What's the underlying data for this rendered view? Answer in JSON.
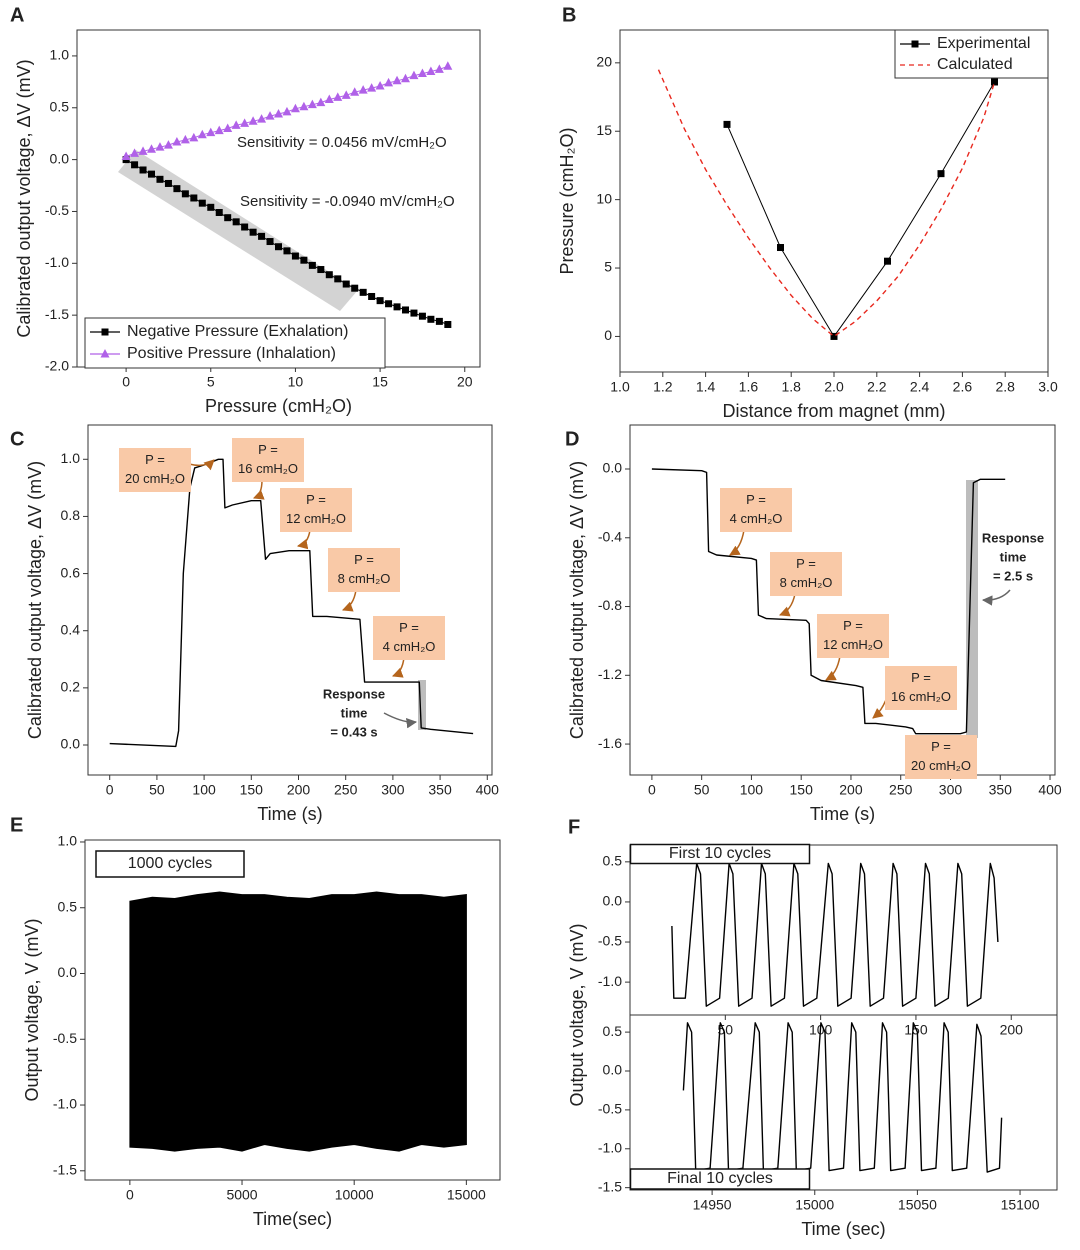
{
  "chart_data": [
    {
      "panel": "A",
      "type": "line",
      "xlabel": "Pressure (cmH₂O)",
      "ylabel": "Calibrated output voltage, ΔV (mV)",
      "xlim": [
        -2.9,
        20.9
      ],
      "xticks": [
        0,
        5,
        10,
        15,
        20
      ],
      "ylim": [
        -2.0,
        1.25
      ],
      "yticks": [
        {
          "value": -2,
          "label": "-2.0"
        },
        -1.5,
        {
          "value": -1,
          "label": "-1.0"
        },
        -0.5,
        {
          "value": 0,
          "label": "0.0"
        },
        0.5,
        {
          "value": 1,
          "label": "1.0"
        }
      ],
      "x": [
        0,
        0.5,
        1,
        1.5,
        2,
        2.5,
        3,
        3.5,
        4,
        4.5,
        5,
        5.5,
        6,
        6.5,
        7,
        7.5,
        8,
        8.5,
        9,
        9.5,
        10,
        10.5,
        11,
        11.5,
        12,
        12.5,
        13,
        13.5,
        14,
        14.5,
        15,
        15.5,
        16,
        16.5,
        17,
        17.5,
        18,
        18.5,
        19
      ],
      "series": [
        {
          "name": "Negative Pressure (Exhalation)",
          "color": "#000000",
          "marker": "square",
          "values": [
            0,
            -0.05,
            -0.1,
            -0.14,
            -0.19,
            -0.23,
            -0.28,
            -0.33,
            -0.37,
            -0.42,
            -0.46,
            -0.51,
            -0.56,
            -0.6,
            -0.65,
            -0.7,
            -0.74,
            -0.79,
            -0.84,
            -0.88,
            -0.93,
            -0.97,
            -1.02,
            -1.06,
            -1.11,
            -1.15,
            -1.2,
            -1.24,
            -1.28,
            -1.32,
            -1.36,
            -1.39,
            -1.42,
            -1.45,
            -1.48,
            -1.51,
            -1.54,
            -1.56,
            -1.59
          ]
        },
        {
          "name": "Positive Pressure (Inhalation)",
          "color": "#b061e8",
          "marker": "triangle",
          "values": [
            0.03,
            0.06,
            0.08,
            0.1,
            0.12,
            0.14,
            0.17,
            0.19,
            0.21,
            0.24,
            0.26,
            0.28,
            0.3,
            0.33,
            0.35,
            0.37,
            0.39,
            0.42,
            0.44,
            0.46,
            0.49,
            0.51,
            0.53,
            0.55,
            0.58,
            0.6,
            0.62,
            0.65,
            0.67,
            0.69,
            0.71,
            0.74,
            0.76,
            0.78,
            0.81,
            0.83,
            0.85,
            0.87,
            0.9
          ]
        }
      ],
      "legend": "lower left",
      "annotations": [
        "Sensitivity = 0.0456 mV/cmH₂O",
        "Sensitivity = -0.0940 mV/cmH₂O"
      ]
    },
    {
      "panel": "B",
      "type": "line",
      "xlabel": "Distance from magnet (mm)",
      "ylabel": "Pressure (cmH₂O)",
      "xlim": [
        1,
        3
      ],
      "xticks": [
        {
          "value": 1,
          "label": "1.0"
        },
        1.2,
        1.4,
        1.6,
        1.8,
        {
          "value": 2,
          "label": "2.0"
        },
        2.2,
        2.4,
        2.6,
        2.8,
        {
          "value": 3,
          "label": "3.0"
        }
      ],
      "ylim": [
        -2.6,
        22.4
      ],
      "yticks": [
        0,
        5,
        10,
        15,
        20
      ],
      "legend": "upper right",
      "series": [
        {
          "name": "Experimental",
          "color": "#000000",
          "marker": "square",
          "x": [
            1.5,
            1.75,
            2,
            2.25,
            2.5,
            2.75
          ],
          "values": [
            15.5,
            6.5,
            0,
            5.5,
            11.9,
            18.6
          ]
        },
        {
          "name": "Calculated",
          "color": "#e8281e",
          "dash": true,
          "x": [
            1.18,
            1.3,
            1.4,
            1.5,
            1.6,
            1.7,
            1.8,
            1.9,
            2.0,
            2.1,
            2.2,
            2.3,
            2.4,
            2.5,
            2.6,
            2.7,
            2.75
          ],
          "values": [
            19.5,
            15.2,
            12.2,
            9.6,
            7.2,
            5.0,
            3.0,
            1.3,
            0,
            1.1,
            2.6,
            4.4,
            6.7,
            9.3,
            12.3,
            16.0,
            18.6
          ]
        }
      ]
    },
    {
      "panel": "C",
      "type": "line",
      "xlabel": "Time (s)",
      "ylabel": "Calibrated output voltage, ΔV (mV)",
      "xlim": [
        -23,
        405
      ],
      "xticks": [
        0,
        50,
        100,
        150,
        200,
        250,
        300,
        350,
        400
      ],
      "ylim": [
        -0.105,
        1.12
      ],
      "yticks": [
        {
          "value": 0,
          "label": "0.0"
        },
        0.2,
        0.4,
        0.6,
        0.8,
        {
          "value": 1,
          "label": "1.0"
        }
      ],
      "series": [
        {
          "color": "#000000",
          "x": [
            0,
            70,
            73,
            78,
            85,
            90,
            100,
            115,
            120,
            122,
            130,
            150,
            160,
            165,
            170,
            190,
            212,
            215,
            230,
            265,
            270,
            285,
            320,
            328,
            330,
            340,
            385
          ],
          "values": [
            0.005,
            -0.005,
            0.05,
            0.6,
            0.9,
            0.97,
            0.98,
            1.0,
            1.0,
            0.83,
            0.84,
            0.855,
            0.855,
            0.65,
            0.67,
            0.68,
            0.68,
            0.45,
            0.45,
            0.44,
            0.22,
            0.22,
            0.22,
            0.22,
            0.06,
            0.055,
            0.04
          ]
        }
      ],
      "annotations": [
        [
          "P =",
          "20 cmH₂O"
        ],
        [
          "P =",
          "16 cmH₂O"
        ],
        [
          "P =",
          "12 cmH₂O"
        ],
        [
          "P =",
          "8 cmH₂O"
        ],
        [
          "P =",
          "4 cmH₂O"
        ],
        [
          "Response",
          "time",
          "= 0.43 s"
        ]
      ]
    },
    {
      "panel": "D",
      "type": "line",
      "xlabel": "Time (s)",
      "ylabel": "Calibrated output voltage, ΔV (mV)",
      "xlim": [
        -22,
        405
      ],
      "xticks": [
        0,
        50,
        100,
        150,
        200,
        250,
        300,
        350,
        400
      ],
      "ylim": [
        -1.78,
        0.256
      ],
      "yticks": [
        -1.6,
        -1.2,
        -0.8,
        -0.4,
        {
          "value": 0,
          "label": "0.0"
        }
      ],
      "series": [
        {
          "color": "#000000",
          "x": [
            0,
            50,
            55,
            57,
            65,
            100,
            105,
            107,
            115,
            155,
            158,
            160,
            170,
            205,
            212,
            214,
            225,
            255,
            262,
            265,
            310,
            316,
            323,
            330,
            355
          ],
          "values": [
            0,
            -0.01,
            -0.02,
            -0.48,
            -0.5,
            -0.52,
            -0.53,
            -0.85,
            -0.87,
            -0.88,
            -0.9,
            -1.2,
            -1.23,
            -1.26,
            -1.27,
            -1.48,
            -1.48,
            -1.5,
            -1.51,
            -1.54,
            -1.54,
            -1.53,
            -0.08,
            -0.06,
            -0.06
          ]
        }
      ],
      "annotations": [
        [
          "P =",
          "4 cmH₂O"
        ],
        [
          "P =",
          "8 cmH₂O"
        ],
        [
          "P =",
          "12 cmH₂O"
        ],
        [
          "P =",
          "16 cmH₂O"
        ],
        [
          "P =",
          "20 cmH₂O"
        ],
        [
          "Response",
          "time",
          "= 2.5 s"
        ]
      ]
    },
    {
      "panel": "E",
      "type": "band",
      "xlabel": "Time(sec)",
      "ylabel": "Output voltage, V (mV)",
      "xlim": [
        -2000,
        16500
      ],
      "xticks": [
        0,
        5000,
        10000,
        15000
      ],
      "ylim": [
        -1.57,
        1.015
      ],
      "yticks": [
        -1.5,
        {
          "value": -1,
          "label": "-1.0"
        },
        -0.5,
        {
          "value": 0,
          "label": "0.0"
        },
        0.5,
        {
          "value": 1,
          "label": "1.0"
        }
      ],
      "color": "#000000",
      "x": [
        0,
        1000,
        2000,
        3000,
        4000,
        5000,
        6000,
        7000,
        8000,
        9000,
        10000,
        11000,
        12000,
        13000,
        14000,
        15000
      ],
      "upper": [
        0.55,
        0.58,
        0.57,
        0.6,
        0.62,
        0.6,
        0.6,
        0.58,
        0.57,
        0.6,
        0.6,
        0.62,
        0.6,
        0.6,
        0.58,
        0.6
      ],
      "lower": [
        -1.32,
        -1.33,
        -1.35,
        -1.33,
        -1.32,
        -1.35,
        -1.3,
        -1.33,
        -1.35,
        -1.32,
        -1.3,
        -1.33,
        -1.35,
        -1.3,
        -1.32,
        -1.3
      ],
      "annotations": [
        "1000 cycles"
      ]
    },
    {
      "panel": "F",
      "type": "line",
      "ylabel": "Output voltage, V (mV)",
      "xlim": [
        0,
        224
      ],
      "xticks": [
        50,
        100,
        150,
        200
      ],
      "ylim": [
        -1.41,
        0.71
      ],
      "yticks": [
        {
          "value": -1,
          "label": "-1.0"
        },
        -0.5,
        {
          "value": 0,
          "label": "0.0"
        },
        0.5
      ],
      "series": [
        {
          "color": "#000000",
          "x": [
            22,
            23,
            29,
            35,
            37,
            40,
            47,
            52,
            54,
            57,
            64,
            69,
            71,
            74,
            81,
            86,
            88,
            91,
            98,
            104,
            106,
            109,
            116,
            121,
            123,
            126,
            133,
            138,
            140,
            143,
            150,
            155,
            157,
            160,
            167,
            172,
            174,
            177,
            184,
            189,
            191,
            193
          ],
          "values": [
            -0.3,
            -1.2,
            -1.2,
            0.48,
            0.35,
            -1.3,
            -1.2,
            0.48,
            0.35,
            -1.3,
            -1.2,
            0.48,
            0.35,
            -1.3,
            -1.2,
            0.48,
            0.35,
            -1.3,
            -1.2,
            0.48,
            0.35,
            -1.3,
            -1.2,
            0.48,
            0.35,
            -1.3,
            -1.2,
            0.48,
            0.35,
            -1.3,
            -1.2,
            0.48,
            0.35,
            -1.3,
            -1.2,
            0.48,
            0.35,
            -1.3,
            -1.2,
            0.48,
            0.3,
            -0.5
          ]
        }
      ],
      "annotations": [
        "First 10 cycles"
      ]
    },
    {
      "type": "line",
      "xlabel": "Time (sec)",
      "xlim": [
        14910,
        15118
      ],
      "xticks": [
        14950,
        15000,
        15050,
        15100
      ],
      "ylim": [
        -1.53,
        0.72
      ],
      "yticks": [
        -1.5,
        {
          "value": -1,
          "label": "-1.0"
        },
        -0.5,
        {
          "value": 0,
          "label": "0.0"
        },
        0.5
      ],
      "series": [
        {
          "color": "#000000",
          "x": [
            14936,
            14938,
            14940,
            14942,
            14949,
            14954,
            14956,
            14958,
            14965,
            14971,
            14973,
            14975,
            14982,
            14987,
            14989,
            14991,
            14998,
            15003,
            15005,
            15007,
            15014,
            15018,
            15020,
            15022,
            15029,
            15033,
            15035,
            15037,
            15044,
            15048,
            15050,
            15052,
            15059,
            15063,
            15065,
            15067,
            15074,
            15079,
            15081,
            15084,
            15090,
            15091
          ],
          "values": [
            -0.25,
            0.62,
            0.5,
            -1.28,
            -1.25,
            0.62,
            0.5,
            -1.28,
            -1.25,
            0.62,
            0.5,
            -1.28,
            -1.25,
            0.62,
            0.5,
            -1.28,
            -1.25,
            0.62,
            0.5,
            -1.28,
            -1.25,
            0.62,
            0.5,
            -1.28,
            -1.25,
            0.62,
            0.5,
            -1.28,
            -1.25,
            0.62,
            0.5,
            -1.28,
            -1.25,
            0.62,
            0.5,
            -1.28,
            -1.25,
            0.6,
            0.45,
            -1.3,
            -1.25,
            -0.6
          ]
        }
      ],
      "annotations": [
        "Final 10 cycles"
      ]
    }
  ]
}
